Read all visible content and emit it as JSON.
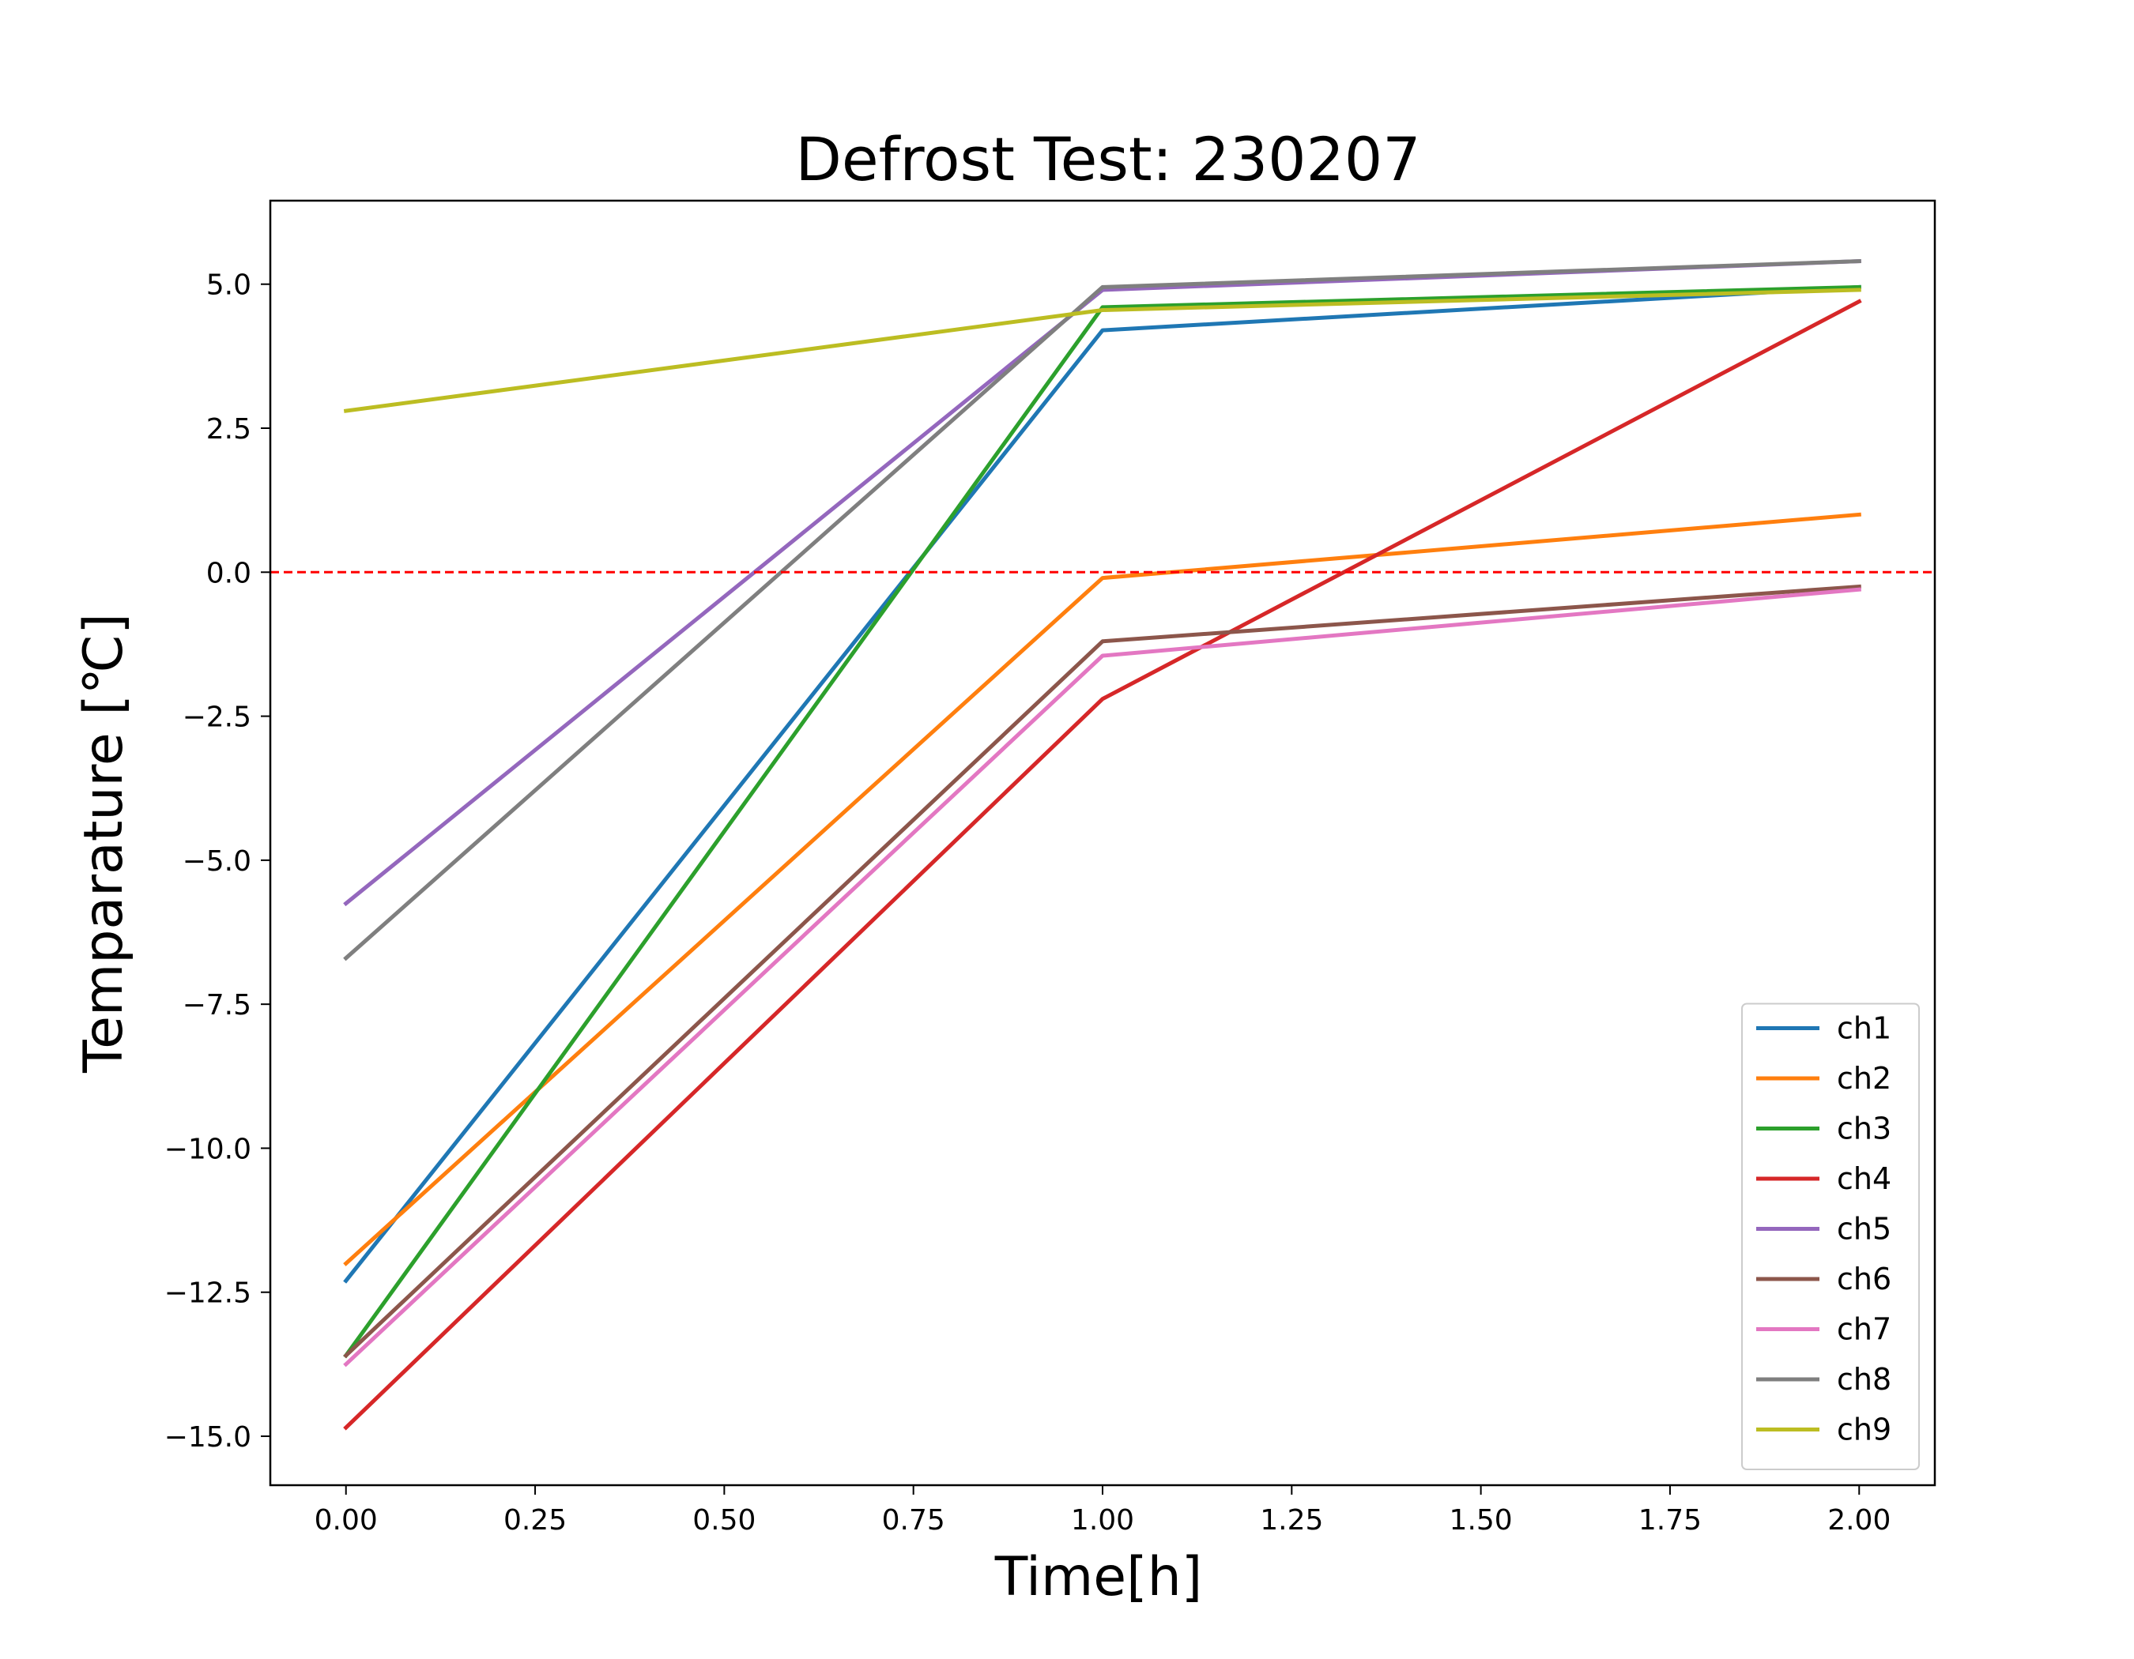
{
  "chart_data": {
    "type": "line",
    "title": "Defrost Test: 230207",
    "xlabel": "Time[h]",
    "ylabel": "Temparature [℃]",
    "x": [
      0,
      1,
      2
    ],
    "xlim": [
      -0.1,
      2.1
    ],
    "ylim": [
      -15.85,
      6.45
    ],
    "xticks": [
      0.0,
      0.25,
      0.5,
      0.75,
      1.0,
      1.25,
      1.5,
      1.75,
      2.0
    ],
    "xtick_labels": [
      "0.00",
      "0.25",
      "0.50",
      "0.75",
      "1.00",
      "1.25",
      "1.50",
      "1.75",
      "2.00"
    ],
    "yticks": [
      -15.0,
      -12.5,
      -10.0,
      -7.5,
      -5.0,
      -2.5,
      0.0,
      2.5,
      5.0
    ],
    "ytick_labels": [
      "−15.0",
      "−12.5",
      "−10.0",
      "−7.5",
      "−5.0",
      "−2.5",
      "0.0",
      "2.5",
      "5.0"
    ],
    "grid": false,
    "legend_position": "lower-right",
    "reference_line": {
      "y": 0.0,
      "style": "dashed",
      "color": "#ff0000"
    },
    "series": [
      {
        "name": "ch1",
        "color": "#1f77b4",
        "values": [
          -12.3,
          4.2,
          4.95
        ]
      },
      {
        "name": "ch2",
        "color": "#ff7f0e",
        "values": [
          -12.0,
          -0.1,
          1.0
        ]
      },
      {
        "name": "ch3",
        "color": "#2ca02c",
        "values": [
          -13.6,
          4.6,
          4.95
        ]
      },
      {
        "name": "ch4",
        "color": "#d62728",
        "values": [
          -14.85,
          -2.2,
          4.7
        ]
      },
      {
        "name": "ch5",
        "color": "#9467bd",
        "values": [
          -5.75,
          4.9,
          5.4
        ]
      },
      {
        "name": "ch6",
        "color": "#8c564b",
        "values": [
          -13.6,
          -1.2,
          -0.25
        ]
      },
      {
        "name": "ch7",
        "color": "#e377c2",
        "values": [
          -13.75,
          -1.45,
          -0.3
        ]
      },
      {
        "name": "ch8",
        "color": "#7f7f7f",
        "values": [
          -6.7,
          4.95,
          5.4
        ]
      },
      {
        "name": "ch9",
        "color": "#bcbd22",
        "values": [
          2.8,
          4.55,
          4.9
        ]
      }
    ]
  }
}
